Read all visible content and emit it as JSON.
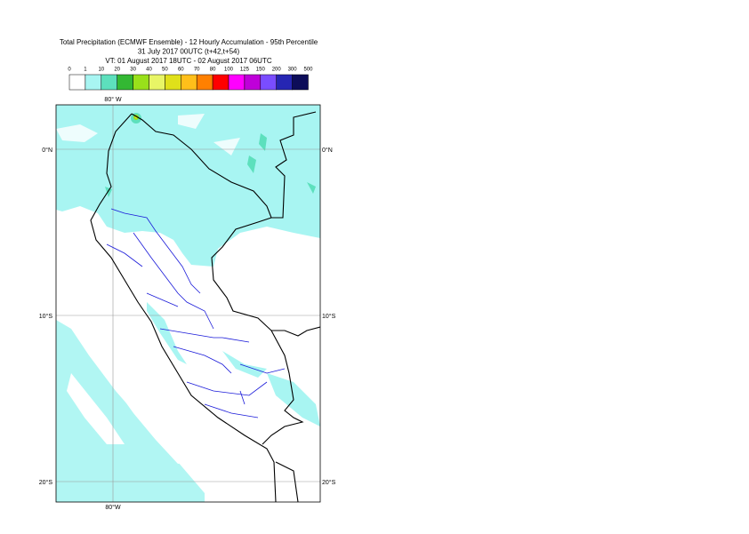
{
  "header": {
    "title": "Total Precipitation (ECMWF Ensemble) - 12 Hourly Accumulation - 95th Percentile",
    "base_time": "31 July 2017 00UTC (t+42,t+54)",
    "valid_time": "VT: 01 August 2017 18UTC - 02 August 2017 06UTC"
  },
  "legend": {
    "labels": [
      "0",
      "1",
      "10",
      "20",
      "30",
      "40",
      "50",
      "60",
      "70",
      "80",
      "100",
      "125",
      "150",
      "200",
      "300",
      "500"
    ],
    "colors": [
      "#ffffff",
      "#a8f5f2",
      "#5de0bd",
      "#33b833",
      "#99e01a",
      "#e8f566",
      "#e0e01a",
      "#ffbf1a",
      "#ff8000",
      "#ff0000",
      "#ff00ff",
      "#bf00d9",
      "#7a4dff",
      "#2626b3",
      "#0d0d59"
    ]
  },
  "axes": {
    "top_lon": "80° W",
    "bottom_lon": "80°W",
    "left_lat": [
      "0°N",
      "10°S",
      "20°S"
    ],
    "right_lat": [
      "0°N",
      "10°S",
      "20°S"
    ]
  }
}
